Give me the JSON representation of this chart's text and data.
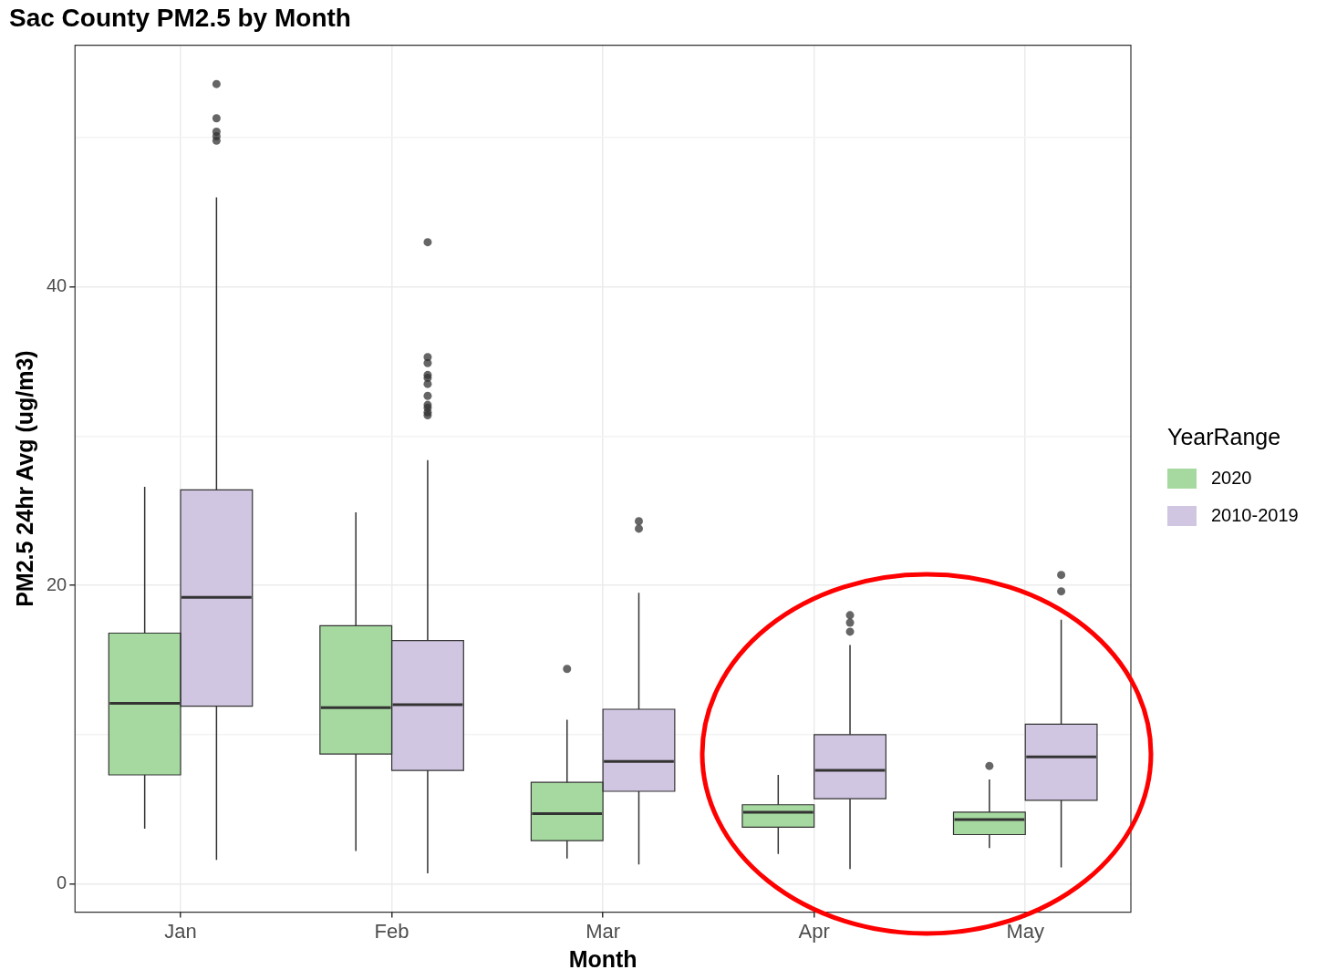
{
  "chart_data": {
    "type": "box",
    "title": "Sac County PM2.5 by Month",
    "xlabel": "Month",
    "ylabel": "PM2.5 24hr Avg (ug/m3)",
    "legend_title": "YearRange",
    "legend": "right",
    "grid": true,
    "categories": [
      "Jan",
      "Feb",
      "Mar",
      "Apr",
      "May"
    ],
    "ylim": [
      -1.9,
      56.2
    ],
    "yticks": [
      0,
      {
        "value": 10,
        "label": null
      },
      20,
      {
        "value": 30,
        "label": null
      },
      40,
      {
        "value": 50,
        "label": null
      }
    ],
    "series": [
      {
        "name": "2020",
        "color": "#a6d9a0",
        "boxes": [
          {
            "low": 3.7,
            "q1": 7.3,
            "median": 12.1,
            "q3": 16.8,
            "high": 26.6
          },
          {
            "low": 2.2,
            "q1": 8.7,
            "median": 11.8,
            "q3": 17.3,
            "high": 24.9
          },
          {
            "low": 1.7,
            "q1": 2.9,
            "median": 4.7,
            "q3": 6.8,
            "high": 11.0,
            "outliers": [
              14.4
            ]
          },
          {
            "low": 2.0,
            "q1": 3.8,
            "median": 4.8,
            "q3": 5.3,
            "high": 7.3
          },
          {
            "low": 2.4,
            "q1": 3.3,
            "median": 4.3,
            "q3": 4.8,
            "high": 7.0,
            "outliers": [
              7.9
            ]
          }
        ]
      },
      {
        "name": "2010-2019",
        "color": "#d1c6e1",
        "boxes": [
          {
            "low": 1.6,
            "q1": 11.9,
            "median": 19.2,
            "q3": 26.4,
            "high": 46.0,
            "outliers": [
              53.6,
              51.3,
              50.4,
              50.1,
              49.8
            ]
          },
          {
            "low": 0.7,
            "q1": 7.6,
            "median": 12.0,
            "q3": 16.3,
            "high": 28.4,
            "outliers": [
              43.0,
              35.3,
              34.9,
              34.1,
              33.9,
              33.5,
              32.7,
              32.1,
              31.9,
              31.6,
              31.4
            ]
          },
          {
            "low": 1.3,
            "q1": 6.2,
            "median": 8.2,
            "q3": 11.7,
            "high": 19.5,
            "outliers": [
              24.3,
              23.8
            ]
          },
          {
            "low": 1.0,
            "q1": 5.7,
            "median": 7.6,
            "q3": 10.0,
            "high": 16.0,
            "outliers": [
              18.0,
              17.5,
              16.9
            ]
          },
          {
            "low": 1.1,
            "q1": 5.6,
            "median": 8.5,
            "q3": 10.7,
            "high": 17.7,
            "outliers": [
              20.7,
              19.6
            ]
          }
        ]
      }
    ]
  }
}
